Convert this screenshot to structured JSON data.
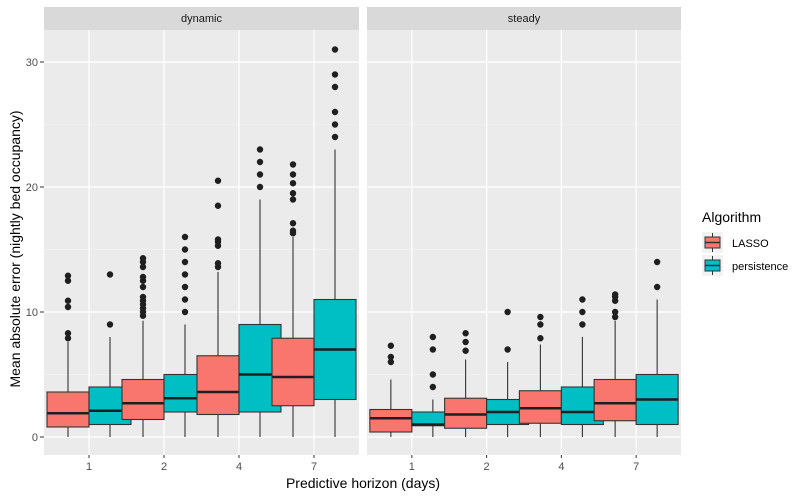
{
  "chart_data": {
    "type": "boxplot",
    "xlabel": "Predictive horizon (days)",
    "ylabel": "Mean absolute error (nightly bed occupancy)",
    "ylim": [
      -1.5,
      32.5
    ],
    "y_ticks": [
      0,
      10,
      20,
      30
    ],
    "categories": [
      "1",
      "2",
      "4",
      "7"
    ],
    "grid": true,
    "legend": {
      "title": "Algorithm",
      "placement": "right",
      "entries": [
        {
          "name": "LASSO",
          "color": "#F8766D"
        },
        {
          "name": "persistence",
          "color": "#00BFC4"
        }
      ]
    },
    "facets": [
      {
        "label": "dynamic",
        "groups": [
          {
            "category": "1",
            "algorithm": "LASSO",
            "min": 0,
            "q1": 0.8,
            "median": 1.9,
            "q3": 3.6,
            "max": 7.6,
            "outliers": [
              7.9,
              8.3,
              10.4,
              10.9,
              12.5,
              12.9
            ]
          },
          {
            "category": "1",
            "algorithm": "persistence",
            "min": 0,
            "q1": 1.0,
            "median": 2.1,
            "q3": 4.0,
            "max": 8.0,
            "outliers": [
              9.0,
              13.0
            ]
          },
          {
            "category": "2",
            "algorithm": "LASSO",
            "min": 0,
            "q1": 1.4,
            "median": 2.7,
            "q3": 4.6,
            "max": 9.3,
            "outliers": [
              9.7,
              10.0,
              10.3,
              10.6,
              10.9,
              11.2,
              12.0,
              12.5,
              12.8,
              13.6,
              14.0,
              14.3
            ]
          },
          {
            "category": "2",
            "algorithm": "persistence",
            "min": 0,
            "q1": 2.0,
            "median": 3.1,
            "q3": 5.0,
            "max": 9.0,
            "outliers": [
              10.0,
              11.0,
              12.0,
              13.0,
              14.0,
              15.0,
              16.0
            ]
          },
          {
            "category": "4",
            "algorithm": "LASSO",
            "min": 0,
            "q1": 1.8,
            "median": 3.6,
            "q3": 6.5,
            "max": 13.2,
            "outliers": [
              13.6,
              13.9,
              15.3,
              15.6,
              15.8,
              18.5,
              20.5
            ]
          },
          {
            "category": "4",
            "algorithm": "persistence",
            "min": 0,
            "q1": 2.0,
            "median": 5.0,
            "q3": 9.0,
            "max": 19.0,
            "outliers": [
              20.0,
              21.0,
              22.0,
              23.0
            ]
          },
          {
            "category": "7",
            "algorithm": "LASSO",
            "min": 0,
            "q1": 2.5,
            "median": 4.8,
            "q3": 7.9,
            "max": 16.0,
            "outliers": [
              16.3,
              16.5,
              17.1,
              19.0,
              19.5,
              20.3,
              21.0,
              21.8
            ]
          },
          {
            "category": "7",
            "algorithm": "persistence",
            "min": 0,
            "q1": 3.0,
            "median": 7.0,
            "q3": 11.0,
            "max": 23.0,
            "outliers": [
              24.0,
              25.0,
              26.0,
              28.0,
              29.0,
              31.0
            ]
          }
        ]
      },
      {
        "label": "steady",
        "groups": [
          {
            "category": "1",
            "algorithm": "LASSO",
            "min": 0,
            "q1": 0.4,
            "median": 1.5,
            "q3": 2.2,
            "max": 4.6,
            "outliers": [
              6.0,
              6.4,
              7.3
            ]
          },
          {
            "category": "1",
            "algorithm": "persistence",
            "min": 0,
            "q1": 0.9,
            "median": 1.0,
            "q3": 2.0,
            "max": 3.0,
            "outliers": [
              4.0,
              5.0,
              7.0,
              8.0
            ]
          },
          {
            "category": "2",
            "algorithm": "LASSO",
            "min": 0,
            "q1": 0.7,
            "median": 1.8,
            "q3": 3.1,
            "max": 6.2,
            "outliers": [
              6.9,
              7.6,
              8.3
            ]
          },
          {
            "category": "2",
            "algorithm": "persistence",
            "min": 0,
            "q1": 1.0,
            "median": 2.0,
            "q3": 3.0,
            "max": 6.0,
            "outliers": [
              7.0,
              10.0
            ]
          },
          {
            "category": "4",
            "algorithm": "LASSO",
            "min": 0,
            "q1": 1.1,
            "median": 2.3,
            "q3": 3.7,
            "max": 7.4,
            "outliers": [
              7.9,
              9.0,
              9.6
            ]
          },
          {
            "category": "4",
            "algorithm": "persistence",
            "min": 0,
            "q1": 1.0,
            "median": 2.0,
            "q3": 4.0,
            "max": 8.0,
            "outliers": [
              9.0,
              10.0,
              11.0
            ]
          },
          {
            "category": "7",
            "algorithm": "LASSO",
            "min": 0,
            "q1": 1.3,
            "median": 2.7,
            "q3": 4.6,
            "max": 9.3,
            "outliers": [
              9.6,
              10.0,
              10.9,
              11.2,
              11.4
            ]
          },
          {
            "category": "7",
            "algorithm": "persistence",
            "min": 0,
            "q1": 1.0,
            "median": 3.0,
            "q3": 5.0,
            "max": 11.0,
            "outliers": [
              12.0,
              14.0
            ]
          }
        ]
      }
    ]
  }
}
